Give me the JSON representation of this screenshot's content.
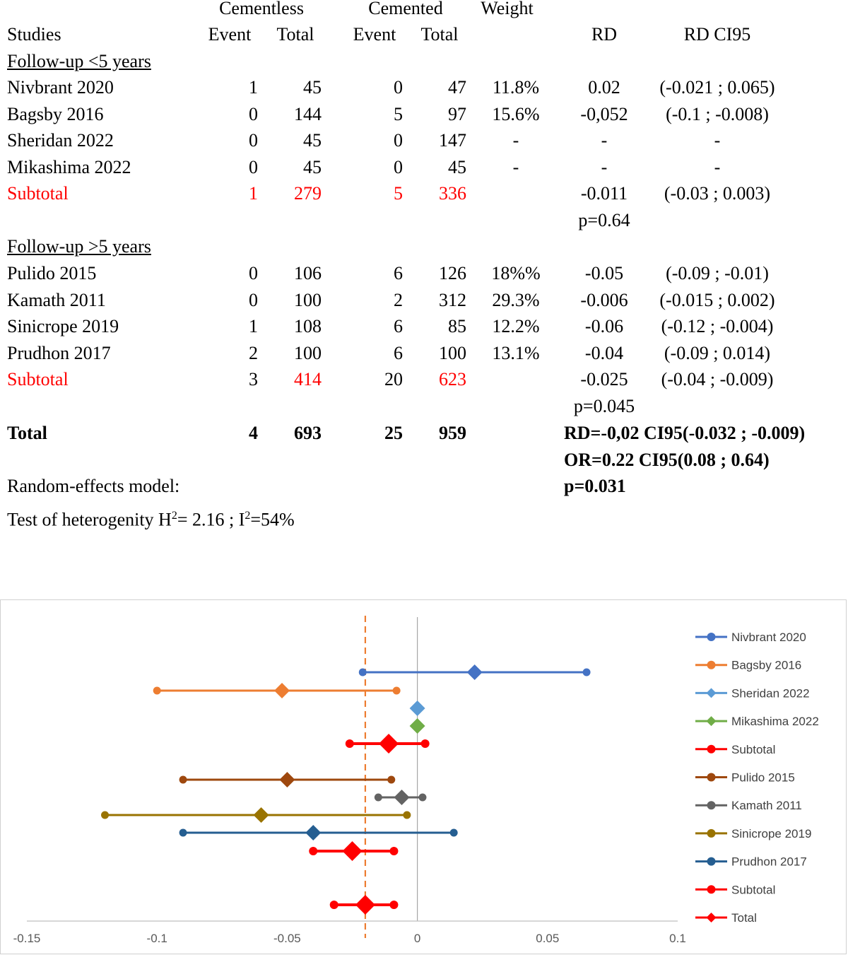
{
  "table": {
    "group_headers": {
      "cementless": "Cementless",
      "cemented": "Cemented",
      "weight": "Weight"
    },
    "col_headers": {
      "studies": "Studies",
      "event1": "Event",
      "total1": "Total",
      "event2": "Event",
      "total2": "Total",
      "rd": "RD",
      "ci": "RD CI95"
    },
    "section1_label": "Follow-up <5 years",
    "section2_label": "Follow-up >5 years",
    "rows1": [
      {
        "study": "Nivbrant 2020",
        "e1": "1",
        "t1": "45",
        "e2": "0",
        "t2": "47",
        "w": "11.8%",
        "rd": "0.02",
        "ci": "(-0.021 ; 0.065)"
      },
      {
        "study": "Bagsby 2016",
        "e1": "0",
        "t1": "144",
        "e2": "5",
        "t2": "97",
        "w": "15.6%",
        "rd": "-0,052",
        "ci": "(-0.1 ; -0.008)"
      },
      {
        "study": "Sheridan 2022",
        "e1": "0",
        "t1": "45",
        "e2": "0",
        "t2": "147",
        "w": "-",
        "rd": "-",
        "ci": "-"
      },
      {
        "study": "Mikashima 2022",
        "e1": "0",
        "t1": "45",
        "e2": "0",
        "t2": "45",
        "w": "-",
        "rd": "-",
        "ci": "-"
      }
    ],
    "subtotal1": {
      "study": "Subtotal",
      "e1": "1",
      "t1": "279",
      "e2": "5",
      "t2": "336",
      "rd": "-0.011",
      "ci": "(-0.03 ; 0.003)",
      "p": "p=0.64"
    },
    "rows2": [
      {
        "study": "Pulido 2015",
        "e1": "0",
        "t1": "106",
        "e2": "6",
        "t2": "126",
        "w": "18%%",
        "rd": "-0.05",
        "ci": "(-0.09 ; -0.01)"
      },
      {
        "study": "Kamath 2011",
        "e1": "0",
        "t1": "100",
        "e2": "2",
        "t2": "312",
        "w": "29.3%",
        "rd": "-0.006",
        "ci": "(-0.015 ; 0.002)"
      },
      {
        "study": "Sinicrope 2019",
        "e1": "1",
        "t1": "108",
        "e2": "6",
        "t2": "85",
        "w": "12.2%",
        "rd": "-0.06",
        "ci": "(-0.12 ; -0.004)"
      },
      {
        "study": "Prudhon 2017",
        "e1": "2",
        "t1": "100",
        "e2": "6",
        "t2": "100",
        "w": "13.1%",
        "rd": "-0.04",
        "ci": "(-0.09 ; 0.014)"
      }
    ],
    "subtotal2": {
      "study": "Subtotal",
      "e1": "3",
      "t1": "414",
      "e2": "20",
      "t2": "623",
      "rd": "-0.025",
      "ci": "(-0.04 ; -0.009)",
      "p": "p=0.045"
    },
    "total": {
      "study": "Total",
      "e1": "4",
      "t1": "693",
      "e2": "25",
      "t2": "959",
      "line1": "RD=-0,02 CI95(-0.032 ; -0.009)",
      "line2": "OR=0.22 CI95(0.08 ; 0.64)",
      "line3": "p=0.031"
    },
    "model_label": "Random-effects model:",
    "heterogeneity": {
      "prefix": "Test of heterogenity H",
      "sup1": "2",
      "middle": "= 2.16 ; I",
      "sup2": "2",
      "suffix": "=54%"
    }
  },
  "chart_data": {
    "type": "scatter",
    "subtype": "forest-plot",
    "xlim": [
      -0.15,
      0.1
    ],
    "xticks": [
      -0.15,
      -0.1,
      -0.05,
      0,
      0.05,
      0.1
    ],
    "reference_line": {
      "x": -0.02,
      "style": "dashed",
      "color": "#ed7d31"
    },
    "zero_line": {
      "x": 0,
      "color": "#a6a6a6"
    },
    "legend_position": "right",
    "series": [
      {
        "name": "Nivbrant 2020",
        "rd": 0.022,
        "lo": -0.021,
        "hi": 0.065,
        "color": "#4472c4"
      },
      {
        "name": "Bagsby 2016",
        "rd": -0.052,
        "lo": -0.1,
        "hi": -0.008,
        "color": "#ed7d31"
      },
      {
        "name": "Sheridan 2022",
        "rd": 0,
        "lo": null,
        "hi": null,
        "color": "#5b9bd5",
        "marker": "diamond"
      },
      {
        "name": "Mikashima 2022",
        "rd": 0,
        "lo": null,
        "hi": null,
        "color": "#70ad47",
        "marker": "diamond"
      },
      {
        "name": "Subtotal",
        "rd": -0.011,
        "lo": -0.026,
        "hi": 0.003,
        "color": "#ff0000",
        "big": true
      },
      {
        "name": "Pulido 2015",
        "rd": -0.05,
        "lo": -0.09,
        "hi": -0.01,
        "color": "#9e480e"
      },
      {
        "name": "Kamath 2011",
        "rd": -0.006,
        "lo": -0.015,
        "hi": 0.002,
        "color": "#636363"
      },
      {
        "name": "Sinicrope 2019",
        "rd": -0.06,
        "lo": -0.12,
        "hi": -0.004,
        "color": "#997300"
      },
      {
        "name": "Prudhon 2017",
        "rd": -0.04,
        "lo": -0.09,
        "hi": 0.014,
        "color": "#255e91"
      },
      {
        "name": "Subtotal",
        "rd": -0.025,
        "lo": -0.04,
        "hi": -0.009,
        "color": "#ff0000",
        "big": true
      },
      {
        "name": "Total",
        "rd": -0.02,
        "lo": -0.032,
        "hi": -0.009,
        "color": "#ff0000",
        "big": true,
        "legend_marker": "diamond"
      }
    ]
  }
}
